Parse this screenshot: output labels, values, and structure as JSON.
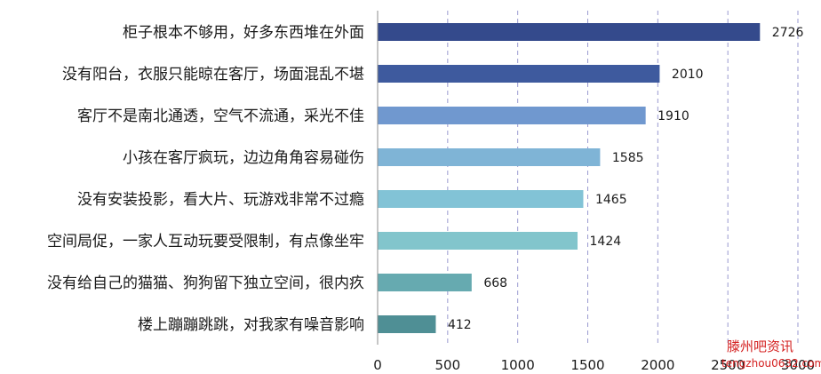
{
  "chart_data": {
    "type": "bar",
    "orientation": "horizontal",
    "categories": [
      "柜子根本不够用，好多东西堆在外面",
      "没有阳台，衣服只能晾在客厅，场面混乱不堪",
      "客厅不是南北通透，空气不流通，采光不佳",
      "小孩在客厅疯玩，边边角角容易碰伤",
      "没有安装投影，看大片、玩游戏非常不过瘾",
      "空间局促，一家人互动玩要受限制，有点像坐牢",
      "没有给自己的猫猫、狗狗留下独立空间，很内疚",
      "楼上蹦蹦跳跳，对我家有噪音影响"
    ],
    "values": [
      2726,
      2010,
      1910,
      1585,
      1465,
      1424,
      668,
      412
    ],
    "colors": [
      "#344a8c",
      "#3e5a9e",
      "#7098cf",
      "#7fb4d6",
      "#82c3d6",
      "#82c5cc",
      "#66aab0",
      "#4f8f95"
    ],
    "xlim": [
      0,
      3000
    ],
    "xticks": [
      "0",
      "500",
      "1000",
      "1500",
      "2000",
      "2500",
      "3000"
    ],
    "grid": "vertical dashed",
    "title": "",
    "xlabel": "",
    "ylabel": ""
  },
  "watermark": {
    "title": "滕州吧资讯",
    "subtitle": "tengzhou0632.com"
  }
}
